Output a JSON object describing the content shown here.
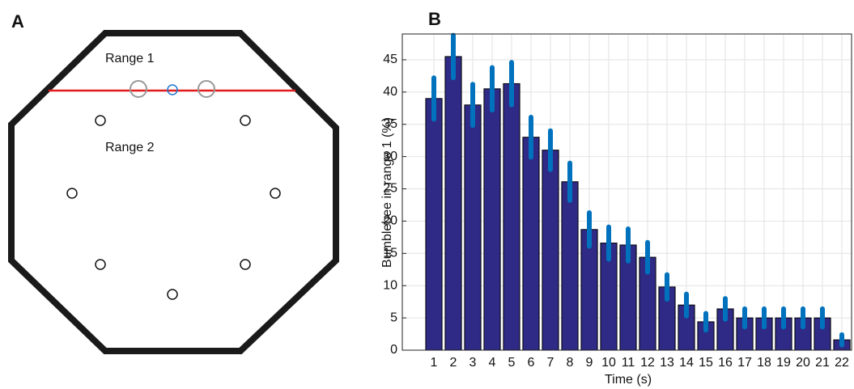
{
  "panel_a": {
    "label": "A",
    "range_labels": [
      "Range 1",
      "Range 2"
    ]
  },
  "chart_data": {
    "type": "bar",
    "panel_label": "B",
    "x_label": "Time (s)",
    "y_label": "Bumblebee in range 1 (%)",
    "categories": [
      "1",
      "2",
      "3",
      "4",
      "5",
      "6",
      "7",
      "8",
      "9",
      "10",
      "11",
      "12",
      "13",
      "14",
      "15",
      "16",
      "17",
      "18",
      "19",
      "20",
      "21",
      "22"
    ],
    "values": [
      39,
      45.5,
      38,
      40.5,
      41.3,
      33,
      31,
      26.1,
      18.7,
      16.6,
      16.3,
      14.4,
      9.8,
      7,
      4.4,
      6.4,
      5,
      5,
      5,
      5,
      5,
      1.6
    ],
    "errors": [
      3.2,
      3.3,
      3.2,
      3.3,
      3.3,
      3.1,
      3.0,
      2.9,
      2.6,
      2.5,
      2.5,
      2.3,
      1.9,
      1.7,
      1.3,
      1.6,
      1.4,
      1.4,
      1.4,
      1.4,
      1.4,
      0.8
    ],
    "color": "#2e2a85",
    "error_color": "#0072bd",
    "ylim": [
      0,
      49
    ],
    "yticks": [
      0,
      5,
      10,
      15,
      20,
      25,
      30,
      35,
      40,
      45
    ],
    "grid": true
  }
}
